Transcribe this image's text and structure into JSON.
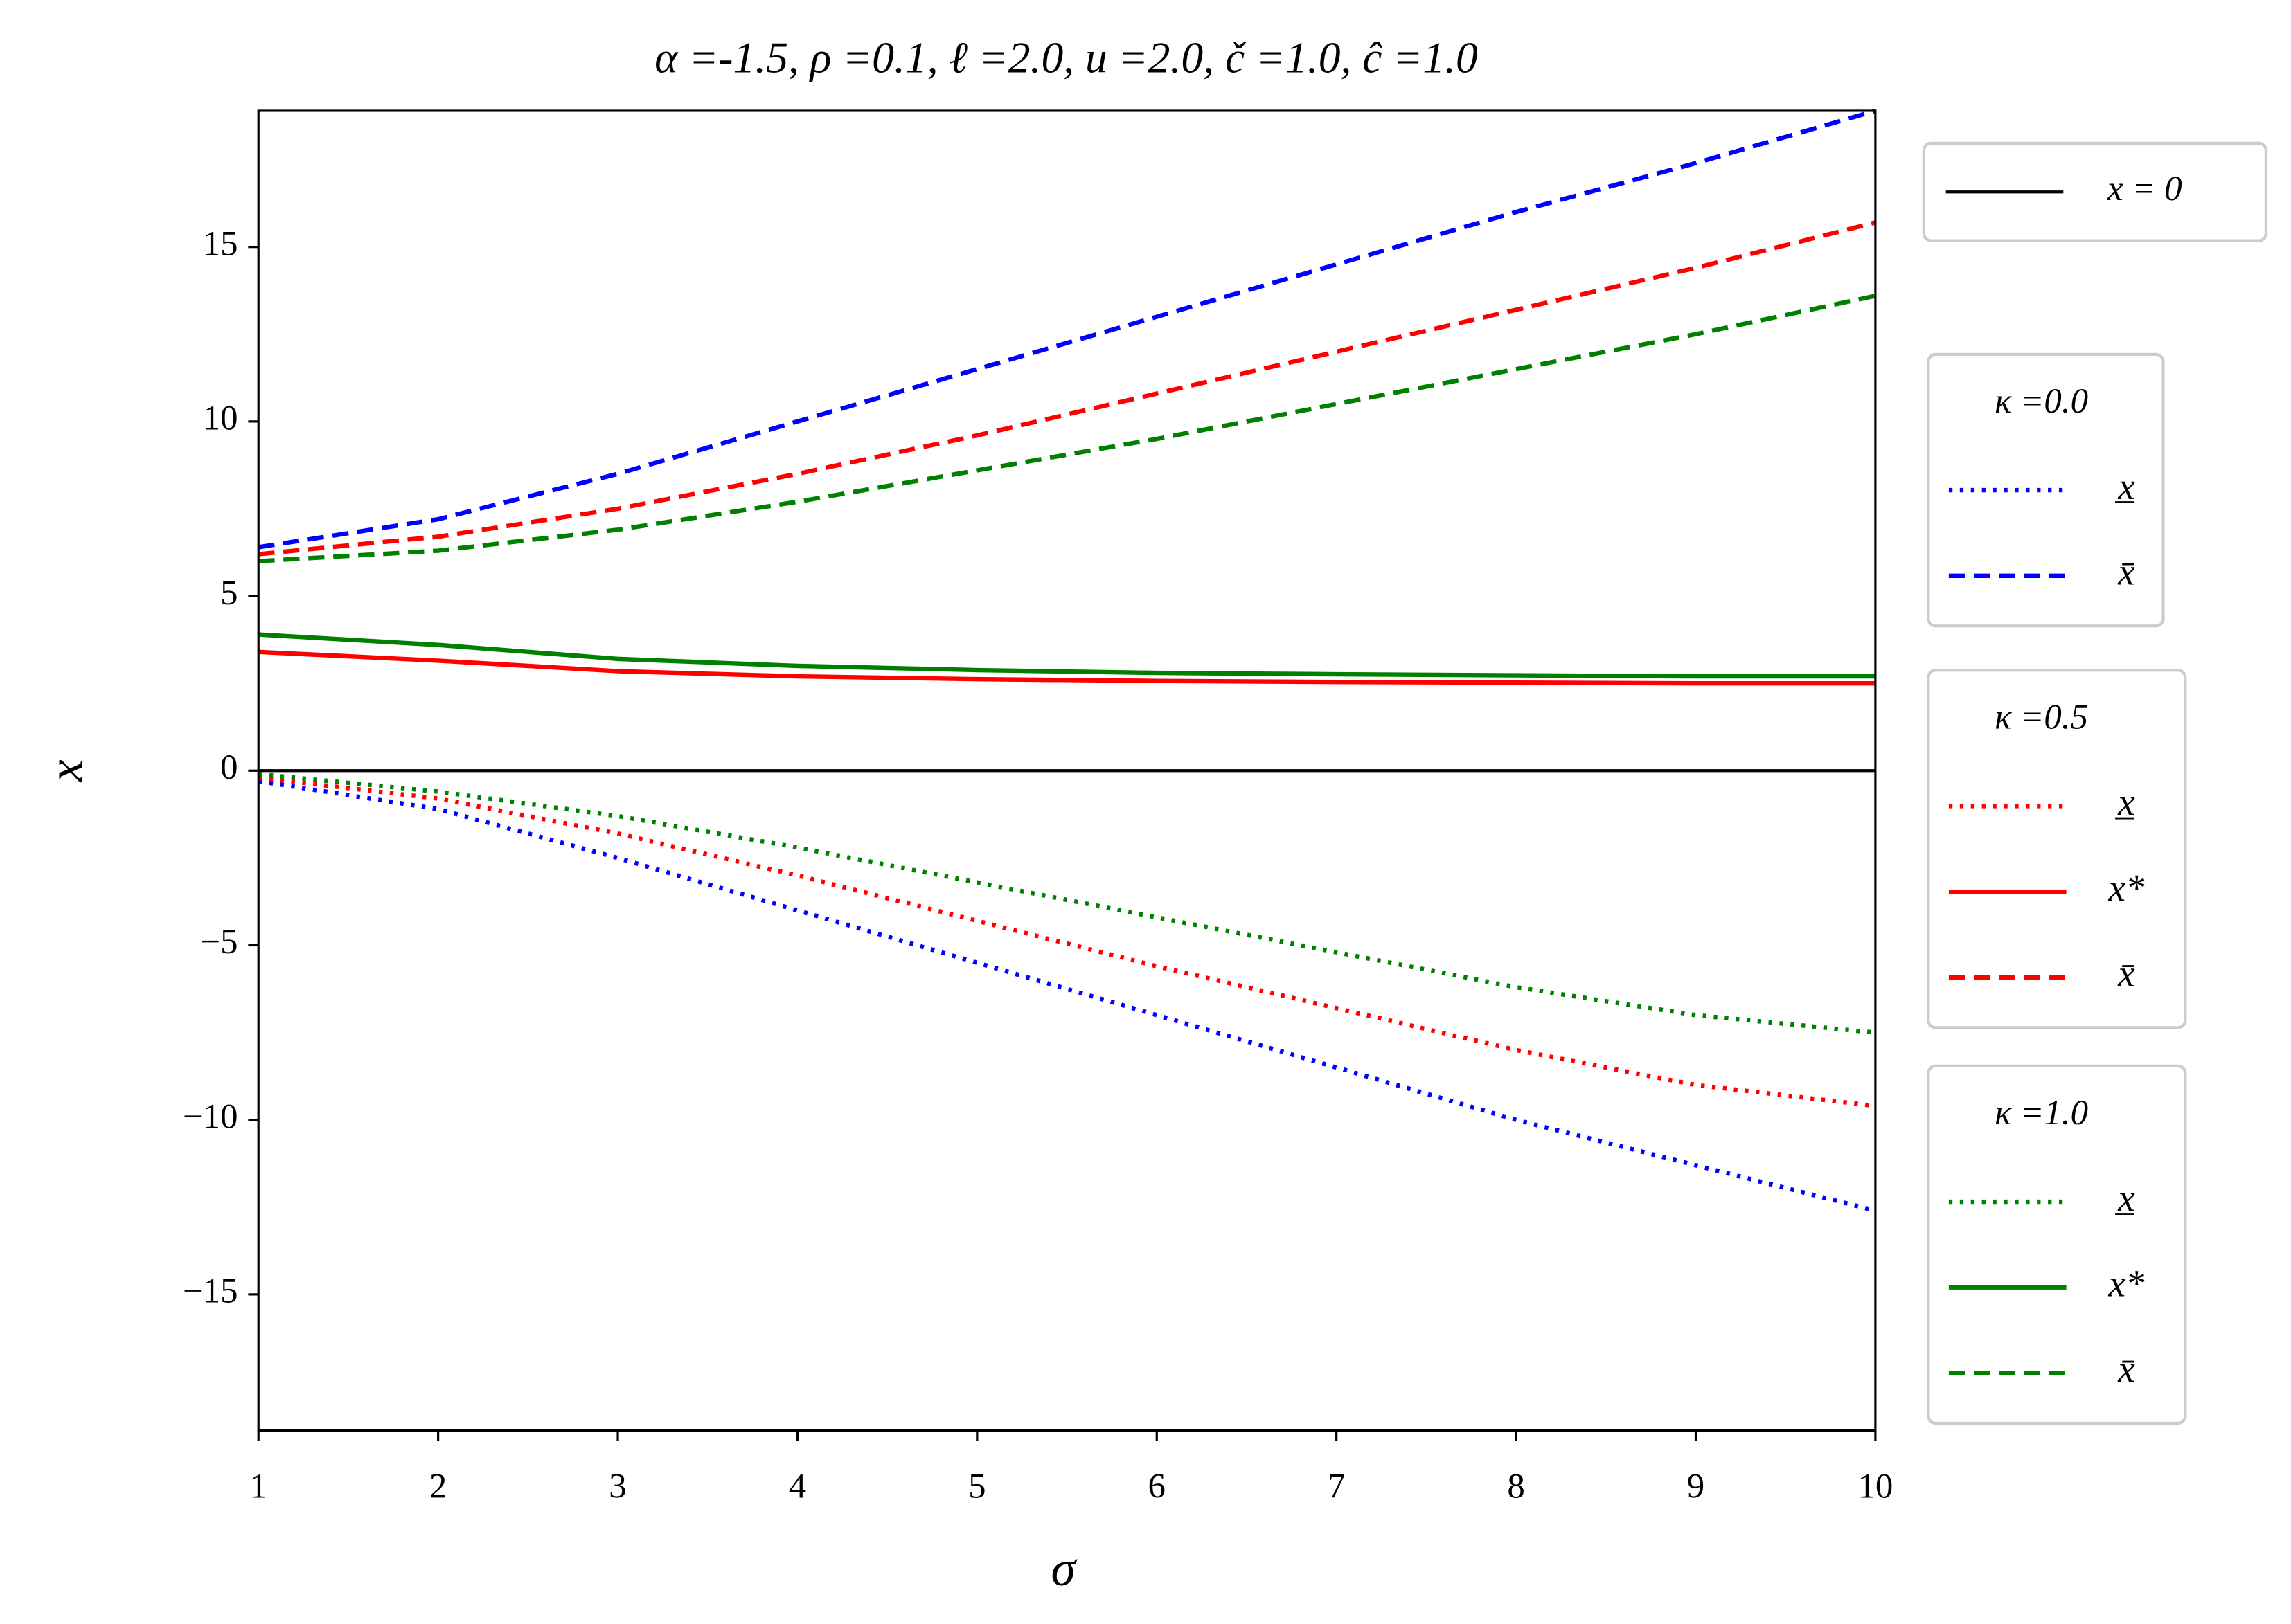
{
  "chart_data": {
    "type": "line",
    "title": "α =-1.5, ρ =0.1, ℓ =2.0, u =2.0, č =1.0, ĉ =1.0",
    "x_label": "σ",
    "y_label": "x",
    "x": [
      1,
      2,
      3,
      4,
      5,
      6,
      7,
      8,
      9,
      10
    ],
    "xlim": [
      1,
      10
    ],
    "xticks": [
      1,
      2,
      3,
      4,
      5,
      6,
      7,
      8,
      9,
      10
    ],
    "ylim": [
      -18.9,
      18.9
    ],
    "yticks": [
      {
        "value": -15,
        "label": "−15"
      },
      {
        "value": -10,
        "label": "−10"
      },
      {
        "value": -5,
        "label": "−5"
      },
      0,
      5,
      10,
      15
    ],
    "hlines": [
      {
        "name": "x = 0",
        "y": 0,
        "color": "#000000"
      }
    ],
    "legend_groups": [
      {
        "title": "κ =0.0"
      },
      {
        "title": "κ =0.5"
      },
      {
        "title": "κ =1.0"
      }
    ],
    "series": [
      {
        "name": "x̲",
        "group": 0,
        "style": "dotted",
        "color": "#0000ff",
        "values": [
          -0.3,
          -1.1,
          -2.5,
          -4.0,
          -5.5,
          -7.0,
          -8.5,
          -10.0,
          -11.3,
          -12.6
        ]
      },
      {
        "name": "x̄",
        "group": 0,
        "style": "dashed",
        "color": "#0000ff",
        "values": [
          6.4,
          7.2,
          8.5,
          10.0,
          11.5,
          13.0,
          14.5,
          16.0,
          17.4,
          18.9
        ]
      },
      {
        "name": "x̲",
        "group": 1,
        "style": "dotted",
        "color": "#ff0000",
        "values": [
          -0.2,
          -0.8,
          -1.8,
          -3.0,
          -4.3,
          -5.6,
          -6.8,
          -8.0,
          -9.0,
          -9.6
        ]
      },
      {
        "name": "x*",
        "group": 1,
        "style": "solid",
        "color": "#ff0000",
        "values": [
          3.4,
          3.15,
          2.85,
          2.7,
          2.62,
          2.57,
          2.54,
          2.52,
          2.5,
          2.5
        ]
      },
      {
        "name": "x̄",
        "group": 1,
        "style": "dashed",
        "color": "#ff0000",
        "values": [
          6.2,
          6.7,
          7.5,
          8.5,
          9.6,
          10.8,
          12.0,
          13.2,
          14.4,
          15.7
        ]
      },
      {
        "name": "x̲",
        "group": 2,
        "style": "dotted",
        "color": "#008000",
        "values": [
          -0.1,
          -0.6,
          -1.3,
          -2.2,
          -3.2,
          -4.2,
          -5.2,
          -6.2,
          -7.0,
          -7.5
        ]
      },
      {
        "name": "x*",
        "group": 2,
        "style": "solid",
        "color": "#008000",
        "values": [
          3.9,
          3.6,
          3.2,
          3.0,
          2.88,
          2.8,
          2.76,
          2.73,
          2.7,
          2.7
        ]
      },
      {
        "name": "x̄",
        "group": 2,
        "style": "dashed",
        "color": "#008000",
        "values": [
          6.0,
          6.3,
          6.9,
          7.7,
          8.6,
          9.5,
          10.5,
          11.5,
          12.5,
          13.6
        ]
      }
    ]
  }
}
